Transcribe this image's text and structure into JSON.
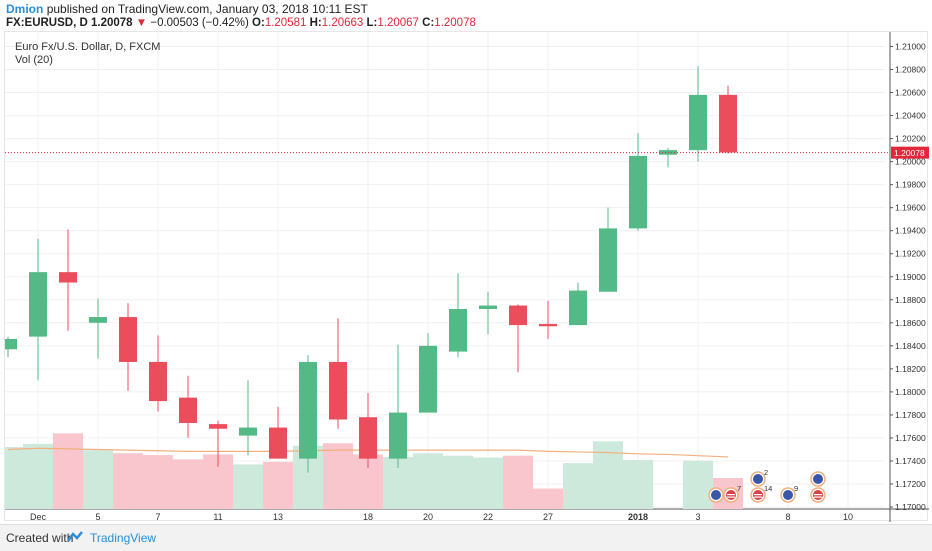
{
  "header": {
    "user": "Dmion",
    "published_text": "published on TradingView.com, January 03, 2018 10:11 EST",
    "symbol": "FX:EURUSD, D",
    "last": "1.20078",
    "change": "−0.00503 (−0.42%)",
    "o_label": "O:",
    "o_value": "1.20581",
    "h_label": "H:",
    "h_value": "1.20663",
    "l_label": "L:",
    "l_value": "1.20067",
    "c_label": "C:",
    "c_value": "1.20078"
  },
  "legend": {
    "title": "Euro Fx/U.S. Dollar, D, FXCM",
    "volume": "Vol (20)"
  },
  "price_tag": "1.20078",
  "footer": {
    "created_with": "Created with",
    "brand": "TradingView"
  },
  "colors": {
    "up": "#53b987",
    "down": "#eb4d5c",
    "vol_up": "#cde9dc",
    "vol_down": "#f8c6cc",
    "ma": "#f2b07e",
    "grid": "#f0f0f0",
    "priceline": "#e0283a"
  },
  "chart_data": {
    "type": "candlestick",
    "title": "Euro Fx/U.S. Dollar, D, FXCM",
    "ylim": [
      1.17,
      1.211
    ],
    "y_ticks": [
      "1.21000",
      "1.20800",
      "1.20600",
      "1.20400",
      "1.20200",
      "1.20000",
      "1.19800",
      "1.19600",
      "1.19400",
      "1.19200",
      "1.19000",
      "1.18800",
      "1.18600",
      "1.18400",
      "1.18200",
      "1.18000",
      "1.17800",
      "1.17600",
      "1.17400",
      "1.17200",
      "1.17000"
    ],
    "x_ticks": [
      {
        "label": "Dec",
        "i": 1
      },
      {
        "label": "5",
        "i": 3
      },
      {
        "label": "7",
        "i": 5
      },
      {
        "label": "11",
        "i": 7
      },
      {
        "label": "13",
        "i": 9
      },
      {
        "label": "18",
        "i": 12
      },
      {
        "label": "20",
        "i": 14
      },
      {
        "label": "22",
        "i": 16
      },
      {
        "label": "27",
        "i": 18
      },
      {
        "label": "2018",
        "i": 21
      },
      {
        "label": "3",
        "i": 23
      },
      {
        "label": "8",
        "i": 26
      },
      {
        "label": "10",
        "i": 28
      }
    ],
    "candles": [
      {
        "o": 1.1837,
        "h": 1.1848,
        "l": 1.183,
        "c": 1.1846
      },
      {
        "o": 1.1848,
        "h": 1.1933,
        "l": 1.181,
        "c": 1.1904
      },
      {
        "o": 1.1904,
        "h": 1.1941,
        "l": 1.1853,
        "c": 1.1895
      },
      {
        "o": 1.186,
        "h": 1.1881,
        "l": 1.1829,
        "c": 1.1865
      },
      {
        "o": 1.1865,
        "h": 1.1877,
        "l": 1.1801,
        "c": 1.1826
      },
      {
        "o": 1.1826,
        "h": 1.1849,
        "l": 1.1783,
        "c": 1.1792
      },
      {
        "o": 1.1795,
        "h": 1.1814,
        "l": 1.176,
        "c": 1.1773
      },
      {
        "o": 1.1772,
        "h": 1.1775,
        "l": 1.1735,
        "c": 1.1768
      },
      {
        "o": 1.1762,
        "h": 1.181,
        "l": 1.1745,
        "c": 1.1769
      },
      {
        "o": 1.1769,
        "h": 1.1787,
        "l": 1.1745,
        "c": 1.1742
      },
      {
        "o": 1.1742,
        "h": 1.1832,
        "l": 1.173,
        "c": 1.1826
      },
      {
        "o": 1.1826,
        "h": 1.1864,
        "l": 1.1768,
        "c": 1.1776
      },
      {
        "o": 1.1778,
        "h": 1.1799,
        "l": 1.1734,
        "c": 1.1742
      },
      {
        "o": 1.1742,
        "h": 1.1841,
        "l": 1.1734,
        "c": 1.1782
      },
      {
        "o": 1.1782,
        "h": 1.1851,
        "l": 1.1783,
        "c": 1.184
      },
      {
        "o": 1.1835,
        "h": 1.1903,
        "l": 1.183,
        "c": 1.1872
      },
      {
        "o": 1.1872,
        "h": 1.1887,
        "l": 1.185,
        "c": 1.1875
      },
      {
        "o": 1.1875,
        "h": 1.1876,
        "l": 1.1817,
        "c": 1.1858
      },
      {
        "o": 1.1859,
        "h": 1.1879,
        "l": 1.1846,
        "c": 1.1857
      },
      {
        "o": 1.1858,
        "h": 1.1895,
        "l": 1.1859,
        "c": 1.1888
      },
      {
        "o": 1.1887,
        "h": 1.196,
        "l": 1.1888,
        "c": 1.1942
      },
      {
        "o": 1.1942,
        "h": 1.2025,
        "l": 1.194,
        "c": 1.2005
      },
      {
        "o": 1.2006,
        "h": 1.2012,
        "l": 1.1995,
        "c": 1.201
      },
      {
        "o": 1.201,
        "h": 1.2083,
        "l": 1.2,
        "c": 1.2058
      },
      {
        "o": 1.2058,
        "h": 1.2066,
        "l": 1.2007,
        "c": 1.2008
      }
    ],
    "candle_slots": [
      0,
      1,
      2,
      3,
      4,
      5,
      6,
      7,
      8,
      9,
      10,
      11,
      12,
      13,
      14,
      15,
      16,
      17,
      18,
      19,
      20,
      21,
      22,
      23,
      24
    ],
    "volume": [
      {
        "v": 100,
        "up": true
      },
      {
        "v": 105,
        "up": true
      },
      {
        "v": 122,
        "up": false
      },
      {
        "v": 95,
        "up": true
      },
      {
        "v": 90,
        "up": false
      },
      {
        "v": 87,
        "up": false
      },
      {
        "v": 80,
        "up": false
      },
      {
        "v": 88,
        "up": false
      },
      {
        "v": 72,
        "up": true
      },
      {
        "v": 76,
        "up": false
      },
      {
        "v": 102,
        "up": true
      },
      {
        "v": 106,
        "up": false
      },
      {
        "v": 88,
        "up": false
      },
      {
        "v": 84,
        "up": true
      },
      {
        "v": 90,
        "up": true
      },
      {
        "v": 86,
        "up": true
      },
      {
        "v": 83,
        "up": true
      },
      {
        "v": 86,
        "up": false
      },
      {
        "v": 33,
        "up": false
      },
      {
        "v": 74,
        "up": true
      },
      {
        "v": 109,
        "up": true
      },
      {
        "v": 79,
        "up": true
      },
      {
        "v": 0,
        "up": true
      },
      {
        "v": 78,
        "up": true
      },
      {
        "v": 50,
        "up": false
      }
    ],
    "vol_ma": [
      96,
      98,
      97,
      96,
      95,
      94,
      93,
      93,
      93,
      93,
      94,
      95,
      95,
      95,
      95,
      95,
      95,
      95,
      93,
      92,
      91,
      89,
      88,
      86,
      84
    ],
    "events": [
      {
        "slot": 23.6,
        "row": 1,
        "type": "eu-flag",
        "count": ""
      },
      {
        "slot": 24.1,
        "row": 1,
        "type": "us-flag",
        "count": "7"
      },
      {
        "slot": 25.0,
        "row": 0,
        "type": "eu-flag",
        "count": "2"
      },
      {
        "slot": 25.0,
        "row": 1,
        "type": "us-flag",
        "count": "14"
      },
      {
        "slot": 26.0,
        "row": 1,
        "type": "eu-flag",
        "count": "9"
      },
      {
        "slot": 27.0,
        "row": 0,
        "type": "eu-flag",
        "count": ""
      },
      {
        "slot": 27.0,
        "row": 1,
        "type": "us-flag",
        "count": ""
      }
    ]
  }
}
